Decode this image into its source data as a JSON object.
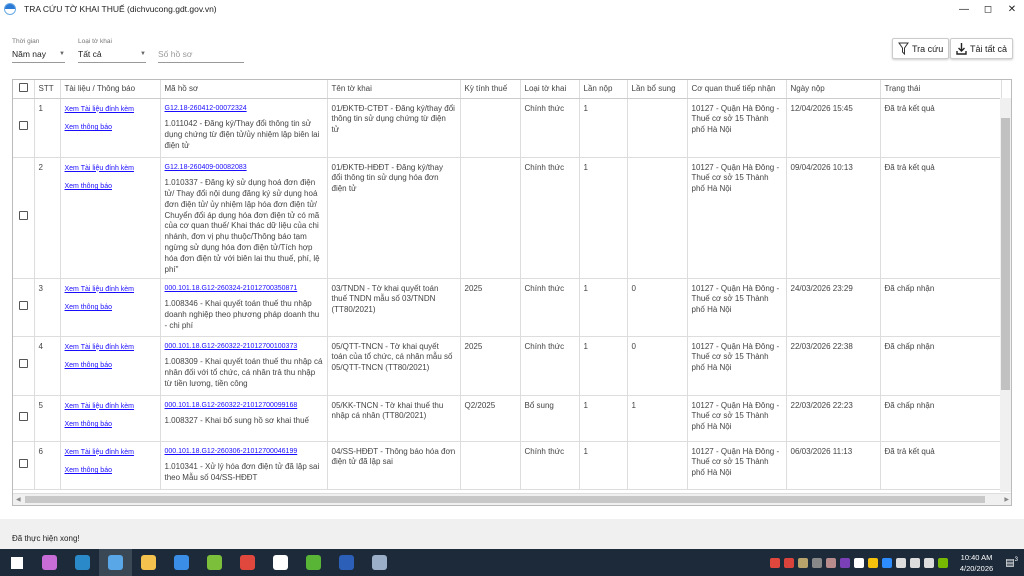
{
  "window": {
    "title": "TRA CỨU TỜ KHAI THUẾ (dichvucong.gdt.gov.vn)"
  },
  "filters": {
    "time_label": "Thời gian",
    "time_value": "Năm nay",
    "type_label": "Loại tờ khai",
    "type_value": "Tất cả",
    "number_placeholder": "Số hồ sơ"
  },
  "toolbar": {
    "search_label": "Tra cứu",
    "download_label": "Tải tất cả"
  },
  "table": {
    "columns": [
      "STT",
      "Tài liệu / Thông báo",
      "Mã hồ sơ",
      "Tên tờ khai",
      "Kỳ tính thuế",
      "Loại tờ khai",
      "Lần nộp",
      "Lần bổ sung",
      "Cơ quan thuế tiếp nhận",
      "Ngày nộp",
      "Trạng thái"
    ],
    "rows": [
      {
        "stt": "1",
        "doc_link": "Xem Tài liệu đính kèm",
        "notice_link": "Xem thông báo",
        "code": "G12.18-260412-00072324",
        "procedure": "1.011042 - Đăng ký/Thay đổi thông tin sử dụng chứng từ điện tử/ủy nhiệm lập biên lai điện tử",
        "form": "01/ĐKTĐ-CTĐT - Đăng ký/thay đổi thông tin sử dụng chứng từ điện tử",
        "period": "",
        "type": "Chính thức",
        "submit_no": "1",
        "supplement_no": "",
        "office": "10127 - Quận Hà Đông - Thuế cơ sở 15 Thành phố Hà Nội",
        "date": "12/04/2026 15:45",
        "status": "Đã trả kết quả"
      },
      {
        "stt": "2",
        "doc_link": "Xem Tài liệu đính kèm",
        "notice_link": "Xem thông báo",
        "code": "G12.18-260409-00082083",
        "procedure": "1.010337 - Đăng ký sử dụng hoá đơn điện tử/ Thay đổi nội dung đăng ký sử dụng hoá đơn điện tử/ ủy nhiệm lập hóa đơn điện tử/ Chuyển đổi áp dụng hóa đơn điện tử có mã của cơ quan thuế/ Khai thác dữ liệu của chi nhánh, đơn vị phụ thuộc/Thông báo tạm ngừng sử dụng hóa đơn điện tử/Tích hợp hóa đơn điện tử với biên lai thu thuế, phí, lệ phí\"",
        "form": "01/ĐKTĐ-HĐĐT - Đăng ký/thay đổi thông tin sử dụng hóa đơn điện tử",
        "period": "",
        "type": "Chính thức",
        "submit_no": "1",
        "supplement_no": "",
        "office": "10127 - Quận Hà Đông - Thuế cơ sở 15 Thành phố Hà Nội",
        "date": "09/04/2026 10:13",
        "status": "Đã trả kết quả"
      },
      {
        "stt": "3",
        "doc_link": "Xem Tài liệu đính kèm",
        "notice_link": "Xem thông báo",
        "code": "000.101.18.G12-260324-21012700350871",
        "procedure": "1.008346 - Khai quyết toán thuế thu nhập doanh nghiệp theo phương pháp doanh thu - chi phí",
        "form": "03/TNDN - Tờ khai quyết toán thuế TNDN mẫu số 03/TNDN (TT80/2021)",
        "period": "2025",
        "type": "Chính thức",
        "submit_no": "1",
        "supplement_no": "0",
        "office": "10127 - Quận Hà Đông - Thuế cơ sở 15 Thành phố Hà Nội",
        "date": "24/03/2026 23:29",
        "status": "Đã chấp nhận"
      },
      {
        "stt": "4",
        "doc_link": "Xem Tài liệu đính kèm",
        "notice_link": "Xem thông báo",
        "code": "000.101.18.G12-260322-21012700100373",
        "procedure": "1.008309 - Khai quyết toán thuế thu nhập cá nhân đối với tổ chức, cá nhân trả thu nhập từ tiền lương, tiền công",
        "form": "05/QTT-TNCN - Tờ khai quyết toán của tổ chức, cá nhân mẫu số 05/QTT-TNCN (TT80/2021)",
        "period": "2025",
        "type": "Chính thức",
        "submit_no": "1",
        "supplement_no": "0",
        "office": "10127 - Quận Hà Đông - Thuế cơ sở 15 Thành phố Hà Nội",
        "date": "22/03/2026 22:38",
        "status": "Đã chấp nhận"
      },
      {
        "stt": "5",
        "doc_link": "Xem Tài liệu đính kèm",
        "notice_link": "Xem thông báo",
        "code": "000.101.18.G12-260322-21012700099168",
        "procedure": "1.008327 - Khai bổ sung hồ sơ khai thuế",
        "form": "05/KK-TNCN - Tờ khai thuế thu nhập cá nhân (TT80/2021)",
        "period": "Q2/2025",
        "type": "Bổ sung",
        "submit_no": "1",
        "supplement_no": "1",
        "office": "10127 - Quận Hà Đông - Thuế cơ sở 15 Thành phố Hà Nội",
        "date": "22/03/2026 22:23",
        "status": "Đã chấp nhận"
      },
      {
        "stt": "6",
        "doc_link": "Xem Tài liệu đính kèm",
        "notice_link": "Xem thông báo",
        "code": "000.101.18.G12-260306-21012700046199",
        "procedure": "1.010341 - Xử lý hóa đơn điện tử đã lập sai theo Mẫu số 04/SS-HĐĐT",
        "form": "04/SS-HĐĐT - Thông báo hóa đơn điện tử đã lập sai",
        "period": "",
        "type": "Chính thức",
        "submit_no": "1",
        "supplement_no": "",
        "office": "10127 - Quận Hà Đông - Thuế cơ sở 15 Thành phố Hà Nội",
        "date": "06/03/2026 11:13",
        "status": "Đã trả kết quả"
      }
    ]
  },
  "statusbar": {
    "message": "Đã thực hiện xong!"
  },
  "taskbar": {
    "time": "10:40 AM",
    "date": "4/20/2026",
    "notification_count": "3",
    "apps": [
      {
        "icon": "windows-start-icon",
        "color": "#ffffff"
      },
      {
        "icon": "copilot-icon",
        "color": "#c86dd7"
      },
      {
        "icon": "app-icon",
        "color": "#2a8ac9"
      },
      {
        "icon": "tax-app-icon",
        "color": "#5aa7e8"
      },
      {
        "icon": "file-explorer-icon",
        "color": "#f2c14e"
      },
      {
        "icon": "remote-desktop-icon",
        "color": "#3a8ee6"
      },
      {
        "icon": "coccoc-icon",
        "color": "#7cbf3a"
      },
      {
        "icon": "chrome-icon",
        "color": "#e0483e"
      },
      {
        "icon": "zalo-icon",
        "color": "#ffffff"
      },
      {
        "icon": "camtasia-icon",
        "color": "#59b536"
      },
      {
        "icon": "word-icon",
        "color": "#2b5fb8"
      },
      {
        "icon": "paint-icon",
        "color": "#9bb0c8"
      }
    ],
    "tray": [
      {
        "icon": "outlook-icon",
        "color": "#e0483e"
      },
      {
        "icon": "vivaldi-icon",
        "color": "#d9433b"
      },
      {
        "icon": "app-tray-icon",
        "color": "#b8a36a"
      },
      {
        "icon": "network-off-icon",
        "color": "#888888"
      },
      {
        "icon": "app-tray2-icon",
        "color": "#b88c8c"
      },
      {
        "icon": "onenote-icon",
        "color": "#7b3fb8"
      },
      {
        "icon": "dropbox-icon",
        "color": "#ffffff"
      },
      {
        "icon": "google-drive-icon",
        "color": "#f4c20d"
      },
      {
        "icon": "zoom-icon",
        "color": "#2d8cff"
      },
      {
        "icon": "battery-icon",
        "color": "#dddddd"
      },
      {
        "icon": "volume-icon",
        "color": "#dddddd"
      },
      {
        "icon": "display-icon",
        "color": "#dddddd"
      },
      {
        "icon": "nvidia-icon",
        "color": "#76b900"
      }
    ]
  }
}
